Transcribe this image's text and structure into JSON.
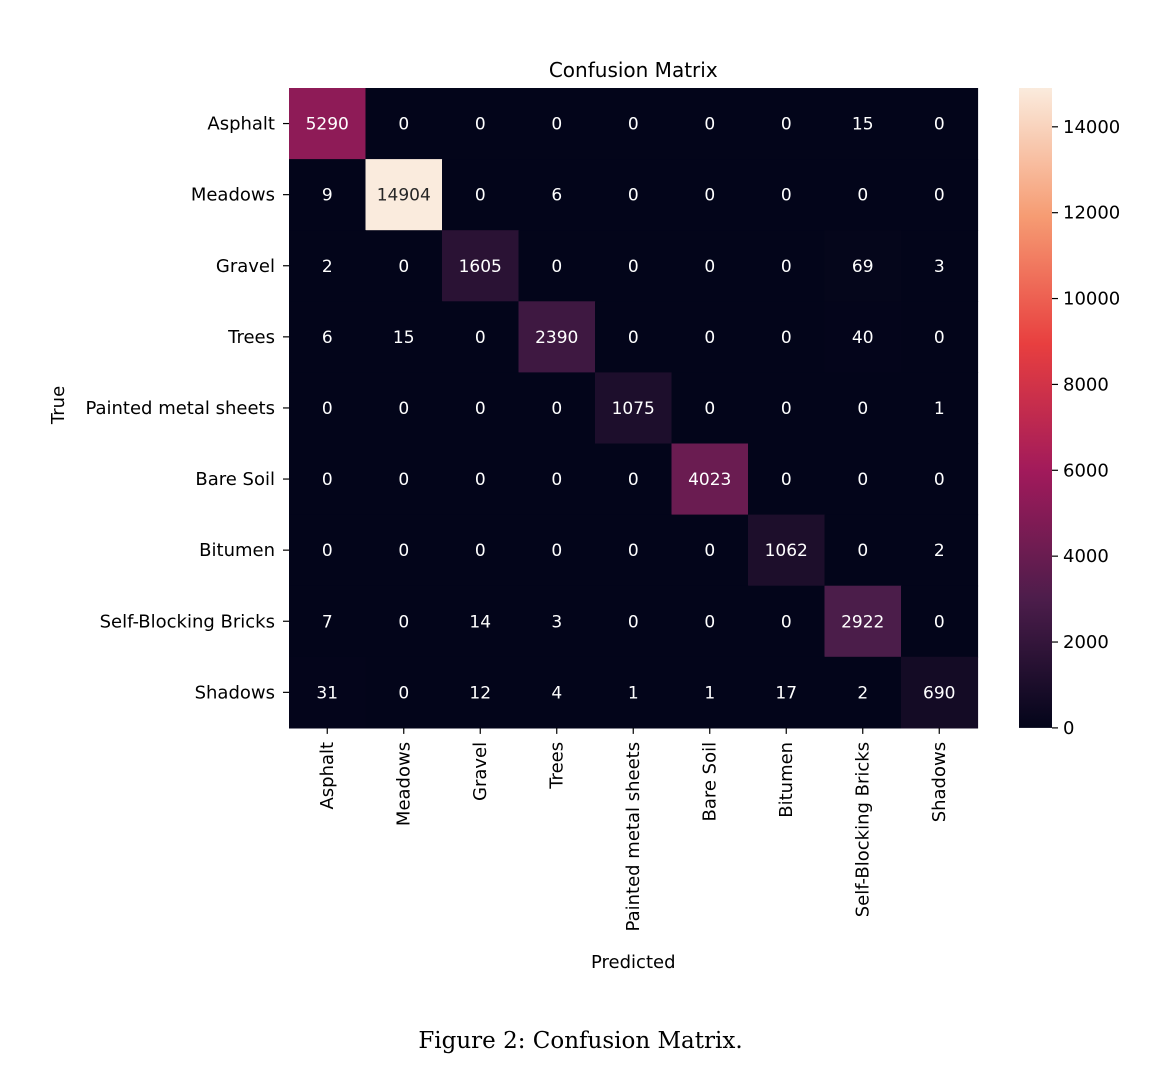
{
  "caption": "Figure 2: Confusion Matrix.",
  "chart_data": {
    "type": "heatmap",
    "title": "Confusion Matrix",
    "xlabel": "Predicted",
    "ylabel": "True",
    "row_labels": [
      "Asphalt",
      "Meadows",
      "Gravel",
      "Trees",
      "Painted metal sheets",
      "Bare Soil",
      "Bitumen",
      "Self-Blocking Bricks",
      "Shadows"
    ],
    "col_labels": [
      "Asphalt",
      "Meadows",
      "Gravel",
      "Trees",
      "Painted metal sheets",
      "Bare Soil",
      "Bitumen",
      "Self-Blocking Bricks",
      "Shadows"
    ],
    "values": [
      [
        5290,
        0,
        0,
        0,
        0,
        0,
        0,
        15,
        0
      ],
      [
        9,
        14904,
        0,
        6,
        0,
        0,
        0,
        0,
        0
      ],
      [
        2,
        0,
        1605,
        0,
        0,
        0,
        0,
        69,
        3
      ],
      [
        6,
        15,
        0,
        2390,
        0,
        0,
        0,
        40,
        0
      ],
      [
        0,
        0,
        0,
        0,
        1075,
        0,
        0,
        0,
        1
      ],
      [
        0,
        0,
        0,
        0,
        0,
        4023,
        0,
        0,
        0
      ],
      [
        0,
        0,
        0,
        0,
        0,
        0,
        1062,
        0,
        2
      ],
      [
        7,
        0,
        14,
        3,
        0,
        0,
        0,
        2922,
        0
      ],
      [
        31,
        0,
        12,
        4,
        1,
        1,
        17,
        2,
        690
      ]
    ],
    "colorbar": {
      "range": [
        0,
        14904
      ],
      "ticks": [
        0,
        2000,
        4000,
        6000,
        8000,
        10000,
        12000,
        14000
      ],
      "colormap": "rocket",
      "colors": [
        "#03051a",
        "#4c1d4b",
        "#a11a5b",
        "#e83f3f",
        "#f69c73",
        "#faebdd"
      ]
    },
    "grid": false
  }
}
